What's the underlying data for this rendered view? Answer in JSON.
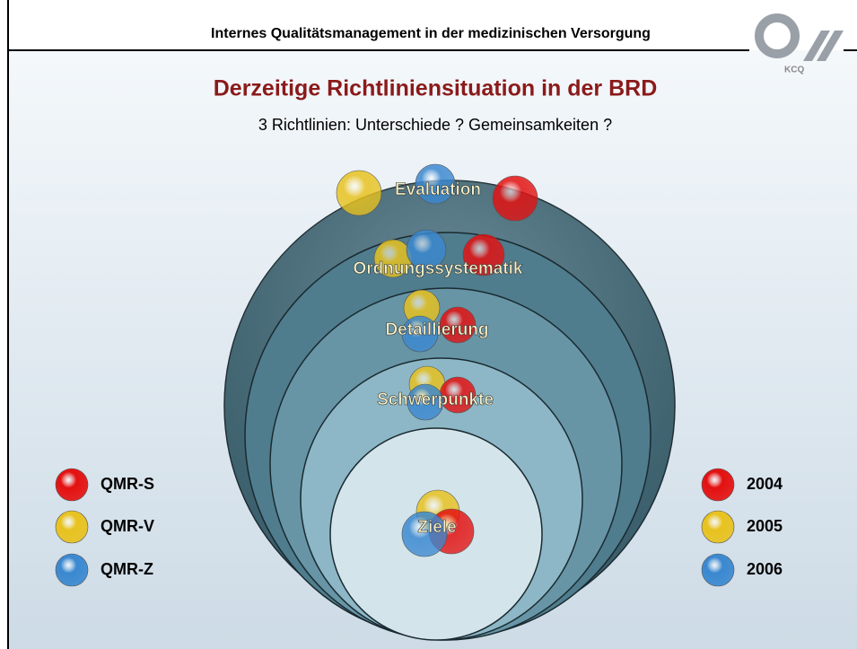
{
  "header": {
    "title": "Internes Qualitätsmanagement in der medizinischen Versorgung",
    "logo": "KCQ"
  },
  "title": "Derzeitige Richtliniensituation in der BRD",
  "subtitle": "3 Richtlinien: Unterschiede ? Gemeinsamkeiten ?",
  "levels": [
    "Evaluation",
    "Ordnungssystematik",
    "Detaillierung",
    "Schwerpunkte",
    "Ziele"
  ],
  "legend_left": [
    {
      "name": "QMR-S",
      "color": "#e41010"
    },
    {
      "name": "QMR-V",
      "color": "#e8c21e"
    },
    {
      "name": "QMR-Z",
      "color": "#3a88d0"
    }
  ],
  "legend_right": [
    {
      "name": "2004",
      "color": "#e41010"
    },
    {
      "name": "2005",
      "color": "#e8c21e"
    },
    {
      "name": "2006",
      "color": "#3a88d0"
    }
  ]
}
